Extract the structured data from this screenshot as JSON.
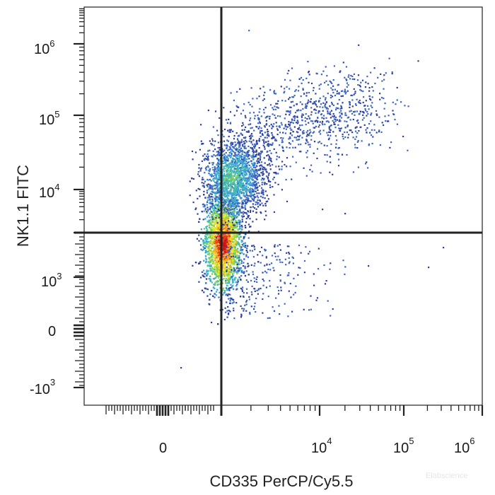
{
  "chart_data": {
    "type": "scatter",
    "subtype": "flow-cytometry-density-dot-plot",
    "xlabel": "CD335 PerCP/Cy5.5",
    "ylabel": "NK1.1 FITC",
    "x_scale": "biexponential",
    "y_scale": "biexponential",
    "x_ticks": [
      {
        "base": "0",
        "exp": ""
      },
      {
        "base": "10",
        "exp": "4"
      },
      {
        "base": "10",
        "exp": "5"
      },
      {
        "base": "10",
        "exp": "6"
      }
    ],
    "y_ticks": [
      {
        "base": "10",
        "exp": "6"
      },
      {
        "base": "10",
        "exp": "5"
      },
      {
        "base": "10",
        "exp": "4"
      },
      {
        "base": "10",
        "exp": "3"
      },
      {
        "base": "0",
        "exp": ""
      },
      {
        "base": "-10",
        "exp": "3"
      }
    ],
    "quadrant_gate": {
      "x": 1300,
      "y": 3000
    },
    "populations": [
      {
        "name": "",
        "x_center": 150,
        "y_center": 800,
        "density": "high"
      },
      {
        "name": "",
        "x_center": 300,
        "y_center": 6000,
        "density": "medium"
      },
      {
        "name": "",
        "x_center": 4000,
        "y_center": 40000,
        "density": "low"
      }
    ],
    "density_colors": [
      "#2e3f9e",
      "#3d66c4",
      "#3fa7d6",
      "#45c3a8",
      "#8fd14f",
      "#e6e62a",
      "#f6a623",
      "#e8401c",
      "#c4161c"
    ],
    "grid": false,
    "legend": "none"
  },
  "watermark": "Elabscience"
}
